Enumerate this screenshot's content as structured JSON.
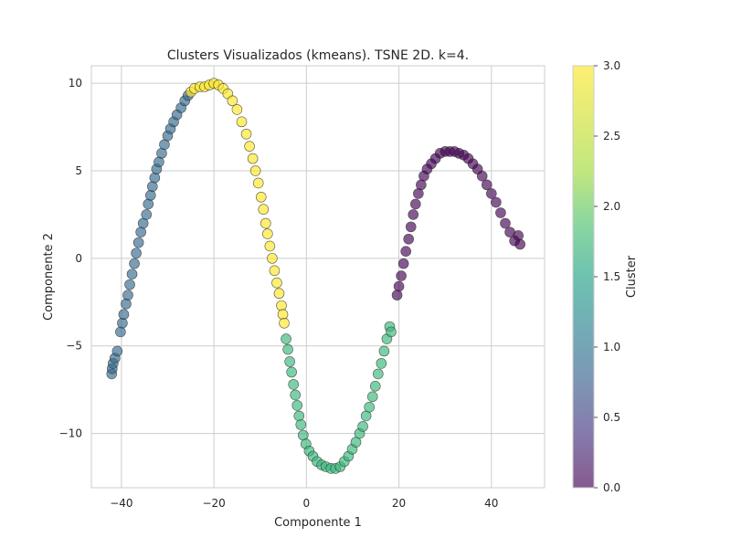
{
  "chart_data": {
    "type": "scatter",
    "title": "Clusters Visualizados (kmeans). TSNE 2D. k=4.",
    "xlabel": "Componente 1",
    "ylabel": "Componente 2",
    "xlim": [
      -46.5,
      51.5
    ],
    "ylim": [
      -13.1,
      11.0
    ],
    "xticks": [
      -40,
      -20,
      0,
      20,
      40
    ],
    "xtick_labels": [
      "−40",
      "−20",
      "0",
      "20",
      "40"
    ],
    "yticks": [
      -10,
      -5,
      0,
      5,
      10
    ],
    "ytick_labels": [
      "−10",
      "−5",
      "0",
      "5",
      "10"
    ],
    "grid": true,
    "colorbar": {
      "label": "Cluster",
      "min": 0.0,
      "max": 3.0,
      "ticks": [
        0.0,
        0.5,
        1.0,
        1.5,
        2.0,
        2.5,
        3.0
      ],
      "tick_labels": [
        "0.0",
        "0.5",
        "1.0",
        "1.5",
        "2.0",
        "2.5",
        "3.0"
      ],
      "colormap": "viridis"
    },
    "series": [
      {
        "cluster": 1,
        "color": "#31688e",
        "points": [
          [
            -42.1,
            -6.6
          ],
          [
            -42.0,
            -6.3
          ],
          [
            -41.8,
            -6.0
          ],
          [
            -41.4,
            -5.7
          ],
          [
            -40.9,
            -5.3
          ],
          [
            -40.2,
            -4.2
          ],
          [
            -39.8,
            -3.7
          ],
          [
            -39.5,
            -3.2
          ],
          [
            -39.0,
            -2.6
          ],
          [
            -38.6,
            -2.1
          ],
          [
            -38.2,
            -1.5
          ],
          [
            -37.7,
            -0.9
          ],
          [
            -37.2,
            -0.3
          ],
          [
            -36.8,
            0.3
          ],
          [
            -36.3,
            0.9
          ],
          [
            -35.8,
            1.5
          ],
          [
            -35.3,
            2.0
          ],
          [
            -34.6,
            2.5
          ],
          [
            -34.2,
            3.1
          ],
          [
            -33.7,
            3.6
          ],
          [
            -33.3,
            4.1
          ],
          [
            -32.8,
            4.6
          ],
          [
            -32.4,
            5.1
          ],
          [
            -31.9,
            5.5
          ],
          [
            -31.3,
            6.0
          ],
          [
            -30.7,
            6.5
          ],
          [
            -30.0,
            7.0
          ],
          [
            -29.4,
            7.4
          ],
          [
            -28.7,
            7.8
          ],
          [
            -28.0,
            8.2
          ],
          [
            -27.1,
            8.6
          ],
          [
            -26.3,
            9.0
          ],
          [
            -25.6,
            9.3
          ]
        ]
      },
      {
        "cluster": 3,
        "color": "#fde725",
        "points": [
          [
            -25.0,
            9.5
          ],
          [
            -24.2,
            9.7
          ],
          [
            -23.0,
            9.8
          ],
          [
            -22.0,
            9.8
          ],
          [
            -21.0,
            9.9
          ],
          [
            -20.0,
            10.0
          ],
          [
            -19.0,
            9.9
          ],
          [
            -18.0,
            9.7
          ],
          [
            -17.0,
            9.4
          ],
          [
            -16.0,
            9.0
          ],
          [
            -15.0,
            8.5
          ],
          [
            -14.0,
            7.8
          ],
          [
            -13.0,
            7.1
          ],
          [
            -12.3,
            6.4
          ],
          [
            -11.6,
            5.7
          ],
          [
            -11.0,
            5.0
          ],
          [
            -10.4,
            4.3
          ],
          [
            -9.8,
            3.5
          ],
          [
            -9.3,
            2.8
          ],
          [
            -8.8,
            2.0
          ],
          [
            -8.4,
            1.4
          ],
          [
            -7.9,
            0.7
          ],
          [
            -7.4,
            0.0
          ],
          [
            -6.9,
            -0.7
          ],
          [
            -6.4,
            -1.4
          ],
          [
            -5.9,
            -2.0
          ],
          [
            -5.4,
            -2.7
          ],
          [
            -5.1,
            -3.2
          ],
          [
            -4.8,
            -3.7
          ]
        ]
      },
      {
        "cluster": 2,
        "color": "#35b779",
        "points": [
          [
            -4.4,
            -4.6
          ],
          [
            -4.0,
            -5.2
          ],
          [
            -3.6,
            -5.9
          ],
          [
            -3.2,
            -6.5
          ],
          [
            -2.8,
            -7.2
          ],
          [
            -2.4,
            -7.8
          ],
          [
            -2.0,
            -8.4
          ],
          [
            -1.6,
            -9.0
          ],
          [
            -1.2,
            -9.5
          ],
          [
            -0.7,
            -10.1
          ],
          [
            -0.1,
            -10.6
          ],
          [
            0.6,
            -11.0
          ],
          [
            1.4,
            -11.3
          ],
          [
            2.3,
            -11.6
          ],
          [
            3.3,
            -11.8
          ],
          [
            4.2,
            -11.9
          ],
          [
            5.3,
            -12.0
          ],
          [
            6.3,
            -12.0
          ],
          [
            7.3,
            -11.9
          ],
          [
            8.2,
            -11.6
          ],
          [
            9.1,
            -11.3
          ],
          [
            9.9,
            -10.9
          ],
          [
            10.7,
            -10.5
          ],
          [
            11.5,
            -10.0
          ],
          [
            12.2,
            -9.6
          ],
          [
            12.9,
            -9.0
          ],
          [
            13.6,
            -8.5
          ],
          [
            14.3,
            -7.9
          ],
          [
            14.9,
            -7.3
          ],
          [
            15.5,
            -6.6
          ],
          [
            16.2,
            -6.0
          ],
          [
            16.8,
            -5.3
          ],
          [
            17.4,
            -4.6
          ],
          [
            18.0,
            -3.9
          ],
          [
            18.3,
            -4.2
          ]
        ]
      },
      {
        "cluster": 0,
        "color": "#440154",
        "points": [
          [
            19.6,
            -2.1
          ],
          [
            20.0,
            -1.6
          ],
          [
            20.5,
            -1.0
          ],
          [
            21.0,
            -0.3
          ],
          [
            21.5,
            0.4
          ],
          [
            22.1,
            1.1
          ],
          [
            22.6,
            1.8
          ],
          [
            23.1,
            2.5
          ],
          [
            23.6,
            3.1
          ],
          [
            24.2,
            3.7
          ],
          [
            24.8,
            4.2
          ],
          [
            25.4,
            4.7
          ],
          [
            26.1,
            5.1
          ],
          [
            27.0,
            5.4
          ],
          [
            27.9,
            5.7
          ],
          [
            28.9,
            6.0
          ],
          [
            30.0,
            6.1
          ],
          [
            31.0,
            6.1
          ],
          [
            32.0,
            6.1
          ],
          [
            33.0,
            6.0
          ],
          [
            34.0,
            5.9
          ],
          [
            35.0,
            5.7
          ],
          [
            36.0,
            5.4
          ],
          [
            37.0,
            5.1
          ],
          [
            38.0,
            4.7
          ],
          [
            39.0,
            4.2
          ],
          [
            40.0,
            3.7
          ],
          [
            41.0,
            3.2
          ],
          [
            42.0,
            2.6
          ],
          [
            43.0,
            2.0
          ],
          [
            44.0,
            1.5
          ],
          [
            45.0,
            1.0
          ],
          [
            45.8,
            1.3
          ],
          [
            46.2,
            0.8
          ]
        ]
      }
    ]
  }
}
